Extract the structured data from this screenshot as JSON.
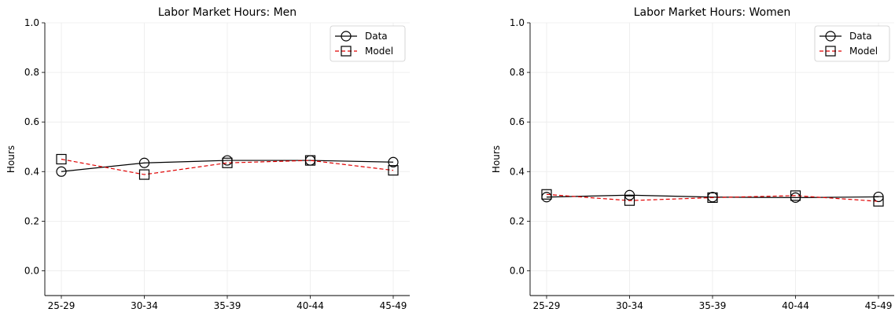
{
  "chart_data": [
    {
      "type": "line",
      "title": "Labor Market Hours: Men",
      "xlabel": "",
      "ylabel": "Hours",
      "categories": [
        "25-29",
        "30-34",
        "35-39",
        "40-44",
        "45-49"
      ],
      "ylim": [
        -0.1,
        1.0
      ],
      "yticks": [
        "0.0",
        "0.2",
        "0.4",
        "0.6",
        "0.8",
        "1.0"
      ],
      "grid": true,
      "legend_position": "top-right",
      "series": [
        {
          "name": "Data",
          "values": [
            0.4,
            0.435,
            0.445,
            0.445,
            0.438
          ],
          "color": "#000000",
          "line_style": "solid",
          "marker": "circle"
        },
        {
          "name": "Model",
          "values": [
            0.45,
            0.388,
            0.435,
            0.445,
            0.405
          ],
          "color": "#e00000",
          "line_style": "dashed",
          "marker": "square"
        }
      ]
    },
    {
      "type": "line",
      "title": "Labor Market Hours: Women",
      "xlabel": "",
      "ylabel": "Hours",
      "categories": [
        "25-29",
        "30-34",
        "35-39",
        "40-44",
        "45-49"
      ],
      "ylim": [
        -0.1,
        1.0
      ],
      "yticks": [
        "0.0",
        "0.2",
        "0.4",
        "0.6",
        "0.8",
        "1.0"
      ],
      "grid": true,
      "legend_position": "top-right",
      "series": [
        {
          "name": "Data",
          "values": [
            0.297,
            0.305,
            0.297,
            0.295,
            0.298
          ],
          "color": "#000000",
          "line_style": "solid",
          "marker": "circle"
        },
        {
          "name": "Model",
          "values": [
            0.308,
            0.283,
            0.295,
            0.303,
            0.28
          ],
          "color": "#e00000",
          "line_style": "dashed",
          "marker": "square"
        }
      ]
    }
  ]
}
